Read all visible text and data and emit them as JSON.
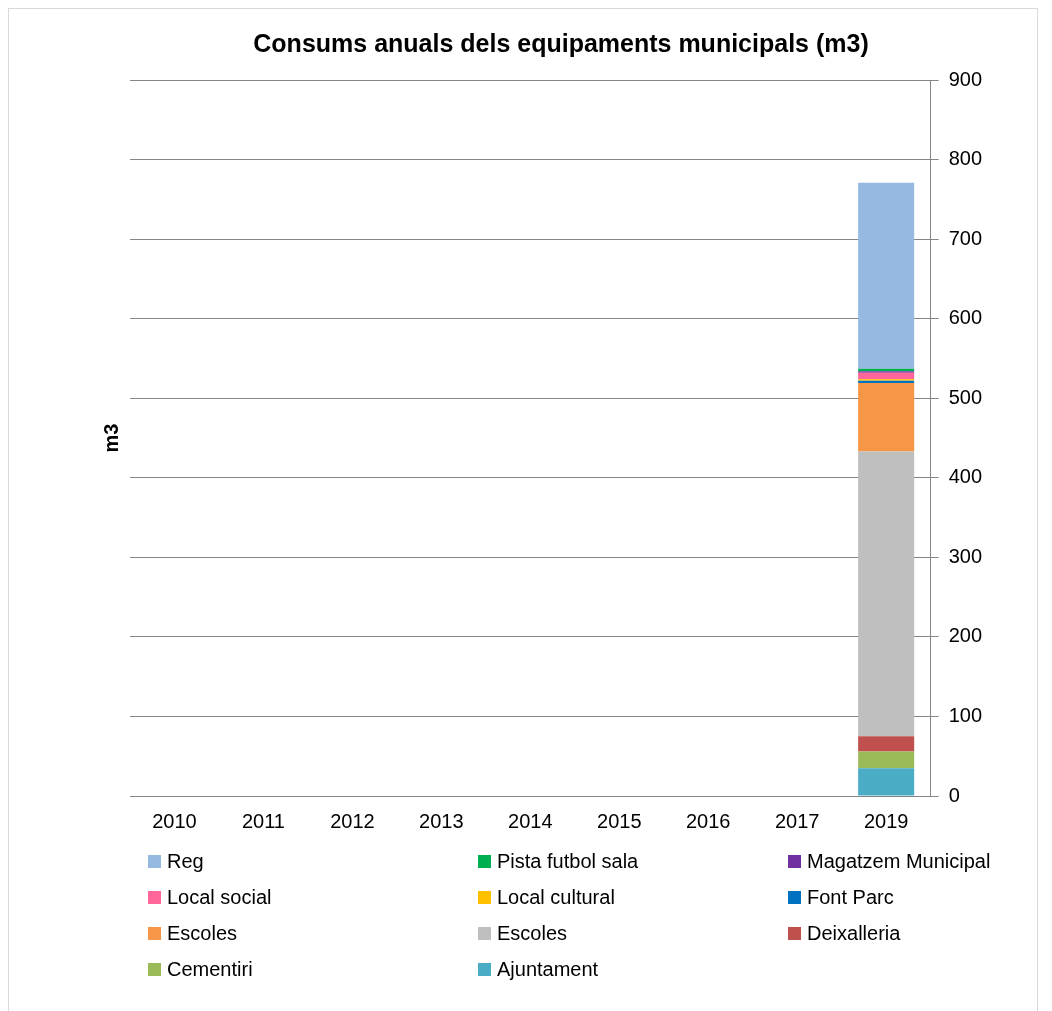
{
  "chart_data": {
    "type": "bar",
    "title": "Consums anuals dels equipaments municipals (m3)",
    "ylabel": "m3",
    "categories": [
      "2010",
      "2011",
      "2012",
      "2013",
      "2014",
      "2015",
      "2016",
      "2017",
      "2019"
    ],
    "stacked": true,
    "grid": "y",
    "legend": "bottom",
    "ylim": [
      0,
      900
    ],
    "yticks": [
      0,
      100,
      200,
      300,
      400,
      500,
      600,
      700,
      800,
      900
    ],
    "series": [
      {
        "name": "Ajuntament",
        "color": "#4bacc6",
        "values": [
          null,
          null,
          null,
          null,
          null,
          null,
          null,
          null,
          35
        ]
      },
      {
        "name": "Cementiri",
        "color": "#9bbb59",
        "values": [
          null,
          null,
          null,
          null,
          null,
          null,
          null,
          null,
          21
        ]
      },
      {
        "name": "Deixalleria",
        "color": "#c0504d",
        "values": [
          null,
          null,
          null,
          null,
          null,
          null,
          null,
          null,
          19
        ]
      },
      {
        "name": "Escoles",
        "color": "#bfbfbf",
        "values": [
          null,
          null,
          null,
          null,
          null,
          null,
          null,
          null,
          358
        ]
      },
      {
        "name": "Escoles",
        "color": "#f79646",
        "values": [
          null,
          null,
          null,
          null,
          null,
          null,
          null,
          null,
          86
        ]
      },
      {
        "name": "Font Parc",
        "color": "#0070c0",
        "values": [
          null,
          null,
          null,
          null,
          null,
          null,
          null,
          null,
          3
        ]
      },
      {
        "name": "Local cultural",
        "color": "#ffc000",
        "values": [
          null,
          null,
          null,
          null,
          null,
          null,
          null,
          null,
          2
        ]
      },
      {
        "name": "Local social",
        "color": "#ff6699",
        "values": [
          null,
          null,
          null,
          null,
          null,
          null,
          null,
          null,
          8
        ]
      },
      {
        "name": "Magatzem Municipal",
        "color": "#7030a0",
        "values": [
          null,
          null,
          null,
          null,
          null,
          null,
          null,
          null,
          2
        ]
      },
      {
        "name": "Pista futbol sala",
        "color": "#00b050",
        "values": [
          null,
          null,
          null,
          null,
          null,
          null,
          null,
          null,
          3
        ]
      },
      {
        "name": "Reg",
        "color": "#95b9e0",
        "values": [
          null,
          null,
          null,
          null,
          null,
          null,
          null,
          null,
          234
        ]
      }
    ]
  }
}
